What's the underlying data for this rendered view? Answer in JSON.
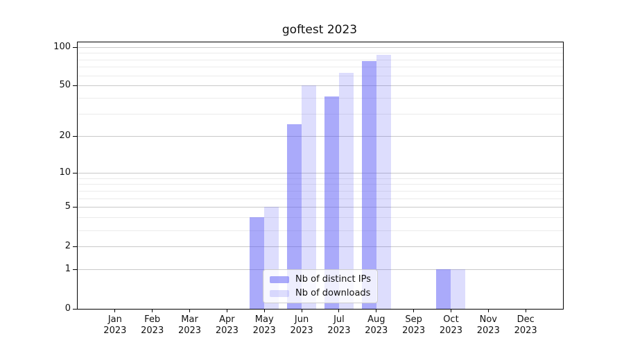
{
  "title": "goftest 2023",
  "chart_data": {
    "type": "bar",
    "title": "goftest 2023",
    "x_categories": [
      "Jan",
      "Feb",
      "Mar",
      "Apr",
      "May",
      "Jun",
      "Jul",
      "Aug",
      "Sep",
      "Oct",
      "Nov",
      "Dec"
    ],
    "x_year": "2023",
    "series": [
      {
        "name": "Nb of distinct IPs",
        "color": "rgba(85,85,246,0.5)",
        "values": [
          0,
          0,
          0,
          0,
          4,
          25,
          41,
          78,
          0,
          1,
          0,
          0
        ]
      },
      {
        "name": "Nb of downloads",
        "color": "rgba(85,85,246,0.2)",
        "values": [
          0,
          0,
          0,
          0,
          5,
          50,
          63,
          87,
          0,
          1,
          0,
          0
        ]
      }
    ],
    "y_axis": {
      "scale": "log10(value+1)",
      "major_ticks": [
        0,
        1,
        2,
        5,
        10,
        20,
        50,
        100
      ],
      "minor_ticks": [
        3,
        4,
        6,
        7,
        8,
        9,
        30,
        40,
        60,
        70,
        80,
        90
      ],
      "range_max": 110
    },
    "xlabel": "",
    "ylabel": "",
    "grid": true,
    "legend_position": "lower center"
  },
  "styles": {
    "major_grid_color": "#c9c9c9",
    "minor_grid_color": "#ebebeb",
    "axis_color": "#000000",
    "text_color": "#111111",
    "background": "#ffffff",
    "legend_border": "#cccccc",
    "legend_bg": "rgba(255,255,255,0.8)"
  }
}
